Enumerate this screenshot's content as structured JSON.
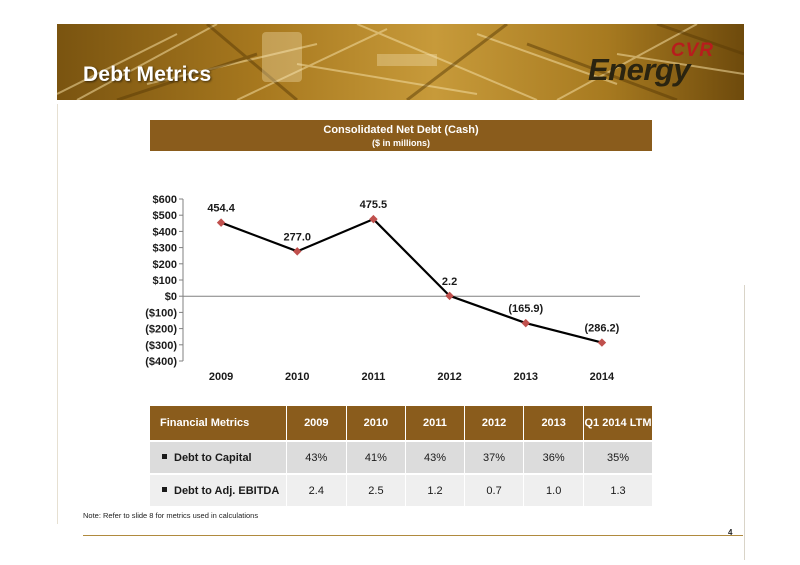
{
  "header": {
    "title": "Debt Metrics",
    "logo_top": "CVR",
    "logo_main": "Energy",
    "accent_color": "#8a5c1c"
  },
  "chart_banner": {
    "title": "Consolidated Net Debt (Cash)",
    "subtitle": "($ in millions)"
  },
  "chart_data": {
    "type": "line",
    "title": "Consolidated Net Debt (Cash)",
    "subtitle": "($ in millions)",
    "categories": [
      "2009",
      "2010",
      "2011",
      "2012",
      "2013",
      "2014"
    ],
    "series": [
      {
        "values": [
          454.4,
          277.0,
          475.5,
          2.2,
          -165.9,
          -286.2
        ],
        "labels": [
          "454.4",
          "277.0",
          "475.5",
          "2.2",
          "(165.9)",
          "(286.2)"
        ]
      }
    ],
    "ylim": [
      -400,
      600
    ],
    "yticks": [
      600,
      500,
      400,
      300,
      200,
      100,
      0,
      -100,
      -200,
      -300,
      -400
    ],
    "ytick_labels": [
      "$600",
      "$500",
      "$400",
      "$300",
      "$200",
      "$100",
      "$0",
      "($100)",
      "($200)",
      "($300)",
      "($400)"
    ],
    "line_color": "#000000",
    "marker_color": "#c0504d",
    "grid": false
  },
  "metrics_table": {
    "header": [
      "Financial Metrics",
      "2009",
      "2010",
      "2011",
      "2012",
      "2013",
      "Q1 2014 LTM"
    ],
    "rows": [
      {
        "label": "Debt to Capital",
        "values": [
          "43%",
          "41%",
          "43%",
          "37%",
          "36%",
          "35%"
        ]
      },
      {
        "label": "Debt to Adj. EBITDA",
        "values": [
          "2.4",
          "2.5",
          "1.2",
          "0.7",
          "1.0",
          "1.3"
        ]
      }
    ]
  },
  "note": "Note: Refer to slide 8 for metrics used in calculations",
  "page_number": "4"
}
